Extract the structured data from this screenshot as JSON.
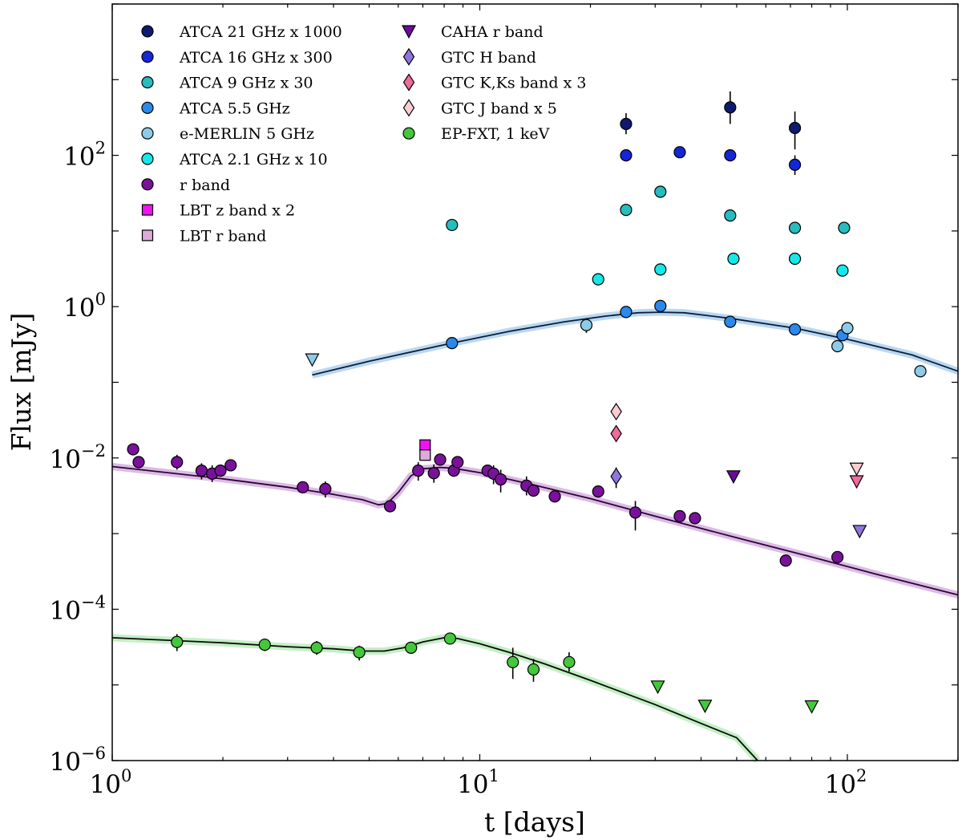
{
  "chart_data": {
    "type": "scatter",
    "title": "",
    "xlabel": "t [days]",
    "ylabel": "Flux [mJy]",
    "xscale": "log",
    "yscale": "log",
    "xlim": [
      1,
      200
    ],
    "ylim": [
      1e-06,
      10000
    ],
    "x_ticks": [
      {
        "value": 1,
        "mant": "10",
        "exp": "0"
      },
      {
        "value": 10,
        "mant": "10",
        "exp": "1"
      },
      {
        "value": 100,
        "mant": "10",
        "exp": "2"
      }
    ],
    "y_ticks": [
      {
        "value": 1e-06,
        "mant": "10",
        "exp": "−6"
      },
      {
        "value": 0.0001,
        "mant": "10",
        "exp": "−4"
      },
      {
        "value": 0.01,
        "mant": "10",
        "exp": "−2"
      },
      {
        "value": 1,
        "mant": "10",
        "exp": "0"
      },
      {
        "value": 100,
        "mant": "10",
        "exp": "2"
      }
    ],
    "legend_position": "top-left",
    "series": [
      {
        "name": "ATCA 21 GHz x 1000",
        "marker": "circle",
        "color": "#0d1a6e",
        "legend_col": 0,
        "points": [
          {
            "x": 25,
            "y": 260,
            "lo": 190,
            "hi": 360
          },
          {
            "x": 48,
            "y": 430,
            "lo": 260,
            "hi": 700
          },
          {
            "x": 72,
            "y": 230,
            "lo": 120,
            "hi": 380
          }
        ]
      },
      {
        "name": "ATCA 16 GHz x 300",
        "marker": "circle",
        "color": "#1426d6",
        "legend_col": 0,
        "points": [
          {
            "x": 25,
            "y": 100
          },
          {
            "x": 35,
            "y": 110
          },
          {
            "x": 48,
            "y": 100
          },
          {
            "x": 72,
            "y": 75,
            "lo": 55,
            "hi": 100
          }
        ]
      },
      {
        "name": "ATCA 9 GHz x 30",
        "marker": "circle",
        "color": "#25bdbf",
        "legend_col": 0,
        "points": [
          {
            "x": 8.4,
            "y": 12
          },
          {
            "x": 25,
            "y": 19
          },
          {
            "x": 31,
            "y": 33
          },
          {
            "x": 48,
            "y": 16
          },
          {
            "x": 72,
            "y": 11
          },
          {
            "x": 98,
            "y": 11
          }
        ]
      },
      {
        "name": "ATCA 5.5 GHz",
        "marker": "circle",
        "color": "#2a89ea",
        "legend_col": 0,
        "points": [
          {
            "x": 8.4,
            "y": 0.33
          },
          {
            "x": 25,
            "y": 0.85
          },
          {
            "x": 31,
            "y": 1.02
          },
          {
            "x": 48,
            "y": 0.63
          },
          {
            "x": 72,
            "y": 0.5
          },
          {
            "x": 97,
            "y": 0.42
          }
        ]
      },
      {
        "name": "e-MERLIN 5 GHz",
        "marker": "circle",
        "color": "#8ecbe8",
        "legend_col": 0,
        "points": [
          {
            "x": 19.5,
            "y": 0.57,
            "lo": 0.45,
            "hi": 0.67
          },
          {
            "x": 94,
            "y": 0.3
          },
          {
            "x": 100,
            "y": 0.52
          },
          {
            "x": 158,
            "y": 0.14,
            "lo": 0.12,
            "hi": 0.16
          }
        ]
      },
      {
        "name": "ATCA 2.1 GHz x 10",
        "marker": "circle",
        "color": "#14e8e8",
        "legend_col": 0,
        "points": [
          {
            "x": 21,
            "y": 2.3
          },
          {
            "x": 31,
            "y": 3.1
          },
          {
            "x": 49,
            "y": 4.3
          },
          {
            "x": 72,
            "y": 4.3
          },
          {
            "x": 97,
            "y": 3.0
          }
        ]
      },
      {
        "name": "r band",
        "marker": "circle",
        "color": "#7a119a",
        "legend_col": 0,
        "points": [
          {
            "x": 1.14,
            "y": 0.013
          },
          {
            "x": 1.18,
            "y": 0.0088
          },
          {
            "x": 1.5,
            "y": 0.0088,
            "lo": 0.007,
            "hi": 0.011
          },
          {
            "x": 1.75,
            "y": 0.0068,
            "lo": 0.0052,
            "hi": 0.0085
          },
          {
            "x": 1.87,
            "y": 0.0062,
            "lo": 0.0048,
            "hi": 0.008
          },
          {
            "x": 1.97,
            "y": 0.0068
          },
          {
            "x": 2.1,
            "y": 0.008
          },
          {
            "x": 3.3,
            "y": 0.0041
          },
          {
            "x": 3.8,
            "y": 0.0039,
            "lo": 0.003,
            "hi": 0.0049
          },
          {
            "x": 5.7,
            "y": 0.0023
          },
          {
            "x": 6.8,
            "y": 0.0068,
            "lo": 0.005,
            "hi": 0.0088
          },
          {
            "x": 7.5,
            "y": 0.0063,
            "lo": 0.0047,
            "hi": 0.0082
          },
          {
            "x": 7.8,
            "y": 0.0095
          },
          {
            "x": 8.5,
            "y": 0.0068
          },
          {
            "x": 8.7,
            "y": 0.0088
          },
          {
            "x": 10.5,
            "y": 0.0068
          },
          {
            "x": 10.9,
            "y": 0.0062,
            "lo": 0.0045,
            "hi": 0.008
          },
          {
            "x": 11.4,
            "y": 0.0052,
            "lo": 0.0035,
            "hi": 0.007
          },
          {
            "x": 13.4,
            "y": 0.0043,
            "lo": 0.0032,
            "hi": 0.0057
          },
          {
            "x": 14,
            "y": 0.0037
          },
          {
            "x": 16,
            "y": 0.0031
          },
          {
            "x": 21,
            "y": 0.0036
          },
          {
            "x": 26.5,
            "y": 0.0019,
            "lo": 0.0011,
            "hi": 0.0027
          },
          {
            "x": 35,
            "y": 0.0017
          },
          {
            "x": 38.5,
            "y": 0.0016
          },
          {
            "x": 68,
            "y": 0.00044
          },
          {
            "x": 94,
            "y": 0.00049
          }
        ]
      },
      {
        "name": "LBT z band x 2",
        "marker": "square",
        "color": "#ef13f1",
        "legend_col": 0,
        "points": [
          {
            "x": 7.1,
            "y": 0.0148
          }
        ]
      },
      {
        "name": "LBT r band",
        "marker": "square",
        "color": "#ddaadc",
        "legend_col": 0,
        "points": [
          {
            "x": 7.1,
            "y": 0.0109
          }
        ]
      },
      {
        "name": "CAHA r band",
        "marker": "triangle-down",
        "color": "#6a0c9b",
        "legend_col": 1,
        "points": [
          {
            "x": 49,
            "y": 0.0057
          }
        ]
      },
      {
        "name": "GTC H band",
        "marker": "diamond",
        "color": "#8f76db",
        "legend_col": 1,
        "points": [
          {
            "x": 23.5,
            "y": 0.0057,
            "lo": 0.004,
            "hi": 0.0075
          }
        ]
      },
      {
        "name": "GTC K,Ks band x 3",
        "marker": "diamond",
        "color": "#ef6b9b",
        "legend_col": 1,
        "points": [
          {
            "x": 23.5,
            "y": 0.021
          }
        ]
      },
      {
        "name": "GTC J band x 5",
        "marker": "diamond",
        "color": "#f9cdd1",
        "legend_col": 1,
        "points": [
          {
            "x": 23.5,
            "y": 0.041
          }
        ]
      },
      {
        "name": "EP-FXT, 1 keV",
        "marker": "circle",
        "color": "#45c73b",
        "legend_col": 1,
        "points": [
          {
            "x": 1.5,
            "y": 3.7e-05,
            "lo": 2.8e-05,
            "hi": 4.7e-05
          },
          {
            "x": 2.6,
            "y": 3.4e-05,
            "lo": 2.8e-05,
            "hi": 4.1e-05
          },
          {
            "x": 3.6,
            "y": 3.1e-05,
            "lo": 2.5e-05,
            "hi": 3.8e-05
          },
          {
            "x": 4.7,
            "y": 2.7e-05,
            "lo": 2.1e-05,
            "hi": 3.3e-05
          },
          {
            "x": 6.5,
            "y": 3.1e-05,
            "lo": 2.6e-05,
            "hi": 3.6e-05
          },
          {
            "x": 8.3,
            "y": 4.1e-05,
            "lo": 3.5e-05,
            "hi": 4.7e-05
          },
          {
            "x": 12.3,
            "y": 2e-05,
            "lo": 1.2e-05,
            "hi": 3.1e-05
          },
          {
            "x": 14,
            "y": 1.6e-05,
            "lo": 1.1e-05,
            "hi": 2.2e-05
          },
          {
            "x": 17.5,
            "y": 2e-05,
            "lo": 1.5e-05,
            "hi": 2.7e-05
          }
        ]
      }
    ],
    "upper_limits": [
      {
        "series": "e-MERLIN 5 GHz",
        "x": 3.5,
        "y": 0.2,
        "color": "#8ecbe8"
      },
      {
        "series": "GTC J band x 5",
        "x": 106,
        "y": 0.0072,
        "color": "#f9cdd1"
      },
      {
        "series": "GTC K,Ks band x 3",
        "x": 106,
        "y": 0.0049,
        "color": "#ef6b9b"
      },
      {
        "series": "GTC H band",
        "x": 108,
        "y": 0.00108,
        "color": "#8f76db"
      },
      {
        "series": "EP-FXT, 1 keV",
        "x": 30.5,
        "y": 9.5e-06,
        "color": "#45c73b"
      },
      {
        "series": "EP-FXT, 1 keV",
        "x": 41,
        "y": 5.3e-06,
        "color": "#45c73b"
      },
      {
        "series": "EP-FXT, 1 keV",
        "x": 80,
        "y": 5.2e-06,
        "color": "#45c73b"
      }
    ],
    "model_curves": [
      {
        "name": "radio model",
        "color": "#0a1f3a",
        "band_color": "#3a8cd8",
        "points": [
          [
            3.5,
            0.125
          ],
          [
            5,
            0.19
          ],
          [
            8.4,
            0.33
          ],
          [
            12,
            0.47
          ],
          [
            17,
            0.63
          ],
          [
            22,
            0.75
          ],
          [
            27,
            0.83
          ],
          [
            31,
            0.845
          ],
          [
            36,
            0.83
          ],
          [
            48,
            0.7
          ],
          [
            72,
            0.52
          ],
          [
            100,
            0.37
          ],
          [
            150,
            0.23
          ],
          [
            200,
            0.14
          ]
        ]
      },
      {
        "name": "optical model",
        "color": "#2a0633",
        "band_color": "#9a3ab8",
        "points": [
          [
            1,
            0.0077
          ],
          [
            2,
            0.0053
          ],
          [
            3,
            0.0041
          ],
          [
            4,
            0.0033
          ],
          [
            4.8,
            0.0028
          ],
          [
            5.3,
            0.0024
          ],
          [
            5.6,
            0.0025
          ],
          [
            6.0,
            0.0035
          ],
          [
            6.5,
            0.0058
          ],
          [
            7,
            0.0072
          ],
          [
            7.8,
            0.0075
          ],
          [
            8.5,
            0.0073
          ],
          [
            10,
            0.0064
          ],
          [
            14,
            0.0044
          ],
          [
            20,
            0.0029
          ],
          [
            30,
            0.0017
          ],
          [
            50,
            0.00088
          ],
          [
            80,
            0.00049
          ],
          [
            120,
            0.00029
          ],
          [
            200,
            0.000155
          ]
        ]
      },
      {
        "name": "X-ray model",
        "color": "#0a0a0a",
        "band_color": "#55d155",
        "points": [
          [
            1,
            4.2e-05
          ],
          [
            2,
            3.6e-05
          ],
          [
            3,
            3.2e-05
          ],
          [
            4,
            3e-05
          ],
          [
            4.8,
            2.8e-05
          ],
          [
            5.5,
            2.8e-05
          ],
          [
            6.2,
            3.1e-05
          ],
          [
            7,
            3.7e-05
          ],
          [
            8,
            4.2e-05
          ],
          [
            8.7,
            4.1e-05
          ],
          [
            10,
            3.5e-05
          ],
          [
            12,
            2.7e-05
          ],
          [
            15,
            1.9e-05
          ],
          [
            20,
            1.15e-05
          ],
          [
            30,
            5.5e-06
          ],
          [
            40,
            3.1e-06
          ],
          [
            50,
            2e-06
          ],
          [
            57,
            1e-06
          ]
        ]
      }
    ]
  }
}
